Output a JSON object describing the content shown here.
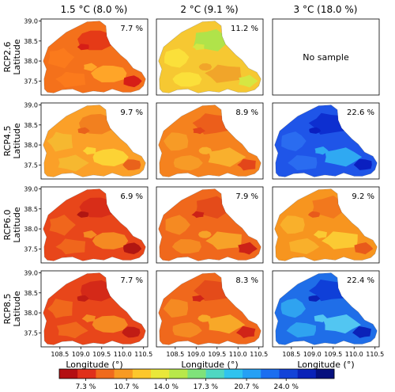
{
  "columns": [
    {
      "label": "1.5 °C (8.0 %)"
    },
    {
      "label": "2 °C (9.1 %)"
    },
    {
      "label": "3 °C (18.0 %)"
    }
  ],
  "rows": [
    {
      "label": "RCP2.6"
    },
    {
      "label": "RCP4.5"
    },
    {
      "label": "RCP6.0"
    },
    {
      "label": "RCP8.5"
    }
  ],
  "axes": {
    "ylabel": "Latitude",
    "xlabel": "Longitude (°)",
    "yticks": [
      "39.0",
      "38.5",
      "38.0",
      "37.5"
    ],
    "xticks": [
      "108.5",
      "109.0",
      "109.5",
      "110.0",
      "110.5"
    ],
    "ytick_values": [
      39.0,
      38.5,
      38.0,
      37.5
    ],
    "xtick_values": [
      108.5,
      109.0,
      109.5,
      110.0,
      110.5
    ],
    "lat_range": [
      37.15,
      39.05
    ],
    "lon_range": [
      108.05,
      110.6
    ]
  },
  "panels": [
    {
      "value_label": "7.7 %",
      "value": 7.7,
      "has_sample": true,
      "palette": [
        "#f4711b",
        "#fb7a1c",
        "#e53a17",
        "#ffa528",
        "#d61e17"
      ]
    },
    {
      "value_label": "11.2 %",
      "value": 11.2,
      "has_sample": true,
      "palette": [
        "#f6c832",
        "#fbe03a",
        "#b0e34a",
        "#f1a52a",
        "#d6e642"
      ]
    },
    {
      "value_label": "",
      "value": null,
      "has_sample": false,
      "no_sample_text": "No sample",
      "palette": []
    },
    {
      "value_label": "9.7 %",
      "value": 9.7,
      "has_sample": true,
      "palette": [
        "#fba028",
        "#f6b830",
        "#f2801f",
        "#fcd335",
        "#e9621b"
      ]
    },
    {
      "value_label": "8.9 %",
      "value": 8.9,
      "has_sample": true,
      "palette": [
        "#f5821e",
        "#f79b26",
        "#ec5e1b",
        "#f9b02d",
        "#e3461a"
      ]
    },
    {
      "value_label": "22.6 %",
      "value": 22.6,
      "has_sample": true,
      "palette": [
        "#1f55e8",
        "#2a6cf0",
        "#0d2fd0",
        "#2fa9f2",
        "#0a1fc0"
      ]
    },
    {
      "value_label": "6.9 %",
      "value": 6.9,
      "has_sample": true,
      "palette": [
        "#e8461a",
        "#f0661c",
        "#d82d18",
        "#f58a22",
        "#b01612"
      ]
    },
    {
      "value_label": "7.9 %",
      "value": 7.9,
      "has_sample": true,
      "palette": [
        "#f0681c",
        "#f58a22",
        "#e44b1a",
        "#f7a228",
        "#cc2217"
      ]
    },
    {
      "value_label": "9.2 %",
      "value": 9.2,
      "has_sample": true,
      "palette": [
        "#f7951f",
        "#f9b02b",
        "#f2781d",
        "#fbca33",
        "#e85a1b"
      ]
    },
    {
      "value_label": "7.7 %",
      "value": 7.7,
      "has_sample": true,
      "palette": [
        "#e8461a",
        "#f0681c",
        "#d42918",
        "#f58a22",
        "#c01c15"
      ]
    },
    {
      "value_label": "8.3 %",
      "value": 8.3,
      "has_sample": true,
      "palette": [
        "#f0681c",
        "#f58a22",
        "#e44b1a",
        "#f8a828",
        "#d02418"
      ]
    },
    {
      "value_label": "22.4 %",
      "value": 22.4,
      "has_sample": true,
      "palette": [
        "#1f6ee8",
        "#2fa3f0",
        "#0f3fd8",
        "#52c6f2",
        "#0b22b8"
      ]
    }
  ],
  "colorbar": {
    "colors": [
      "#b40f12",
      "#e0301a",
      "#f06a1c",
      "#f79a22",
      "#fcc72c",
      "#e9e73a",
      "#b8e84a",
      "#7fe27a",
      "#4fd7c2",
      "#2fc3ef",
      "#25a0f4",
      "#1b6ef0",
      "#1343d8",
      "#0a22b8",
      "#06107e"
    ],
    "tick_labels": [
      "7.3 %",
      "10.7 %",
      "14.0 %",
      "17.3 %",
      "20.7 %",
      "24.0 %"
    ],
    "tick_values": [
      7.3,
      10.7,
      14.0,
      17.3,
      20.7,
      24.0
    ],
    "range": [
      5.1,
      28.0
    ]
  }
}
